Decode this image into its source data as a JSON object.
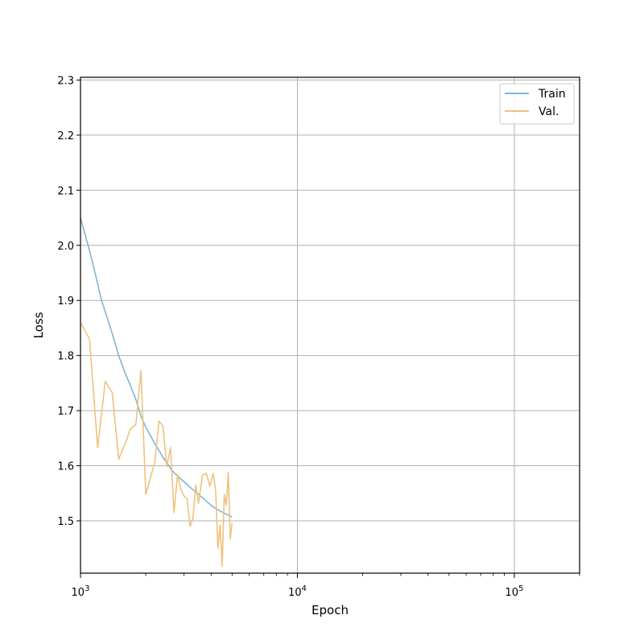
{
  "chart_data": {
    "type": "line",
    "title": "",
    "xlabel": "Epoch",
    "ylabel": "Loss",
    "x_scale": "log",
    "xlim": [
      1000,
      200000
    ],
    "ylim": [
      1.405,
      2.305
    ],
    "x_ticks_major": [
      {
        "value": 1000,
        "base": "10",
        "exp": "3"
      },
      {
        "value": 10000,
        "base": "10",
        "exp": "4"
      },
      {
        "value": 100000,
        "base": "10",
        "exp": "5"
      }
    ],
    "x_ticks_minor": [
      2000,
      3000,
      4000,
      5000,
      6000,
      7000,
      8000,
      9000,
      20000,
      30000,
      40000,
      50000,
      60000,
      70000,
      80000,
      90000,
      200000
    ],
    "y_ticks": [
      {
        "value": 1.5,
        "label": "1.5"
      },
      {
        "value": 1.6,
        "label": "1.6"
      },
      {
        "value": 1.7,
        "label": "1.7"
      },
      {
        "value": 1.8,
        "label": "1.8"
      },
      {
        "value": 1.9,
        "label": "1.9"
      },
      {
        "value": 2.0,
        "label": "2.0"
      },
      {
        "value": 2.1,
        "label": "2.1"
      },
      {
        "value": 2.2,
        "label": "2.2"
      },
      {
        "value": 2.3,
        "label": "2.3"
      }
    ],
    "grid": true,
    "legend_position": "top-right",
    "series": [
      {
        "name": "Train",
        "color": "#7fb6d8",
        "x": [
          1000,
          1050,
          1100,
          1150,
          1200,
          1250,
          1300,
          1400,
          1500,
          1600,
          1700,
          1800,
          1900,
          2000,
          2100,
          2200,
          2300,
          2400,
          2500,
          2600,
          2700,
          2800,
          2900,
          3000,
          3200,
          3400,
          3600,
          3800,
          4000,
          4300,
          4600,
          5000
        ],
        "y": [
          2.05,
          2.02,
          1.99,
          1.96,
          1.93,
          1.9,
          1.88,
          1.84,
          1.8,
          1.77,
          1.745,
          1.72,
          1.69,
          1.67,
          1.655,
          1.64,
          1.628,
          1.615,
          1.606,
          1.595,
          1.587,
          1.582,
          1.576,
          1.571,
          1.561,
          1.552,
          1.544,
          1.536,
          1.528,
          1.52,
          1.514,
          1.507
        ]
      },
      {
        "name": "Val.",
        "color": "#efc27e",
        "x": [
          1000,
          1100,
          1200,
          1300,
          1400,
          1500,
          1600,
          1700,
          1800,
          1900,
          2000,
          2200,
          2300,
          2400,
          2500,
          2600,
          2700,
          2800,
          2900,
          3000,
          3100,
          3200,
          3300,
          3400,
          3500,
          3650,
          3800,
          3950,
          4100,
          4200,
          4300,
          4400,
          4500,
          4600,
          4700,
          4800,
          4900,
          5000
        ],
        "y": [
          1.86,
          1.83,
          1.633,
          1.753,
          1.733,
          1.612,
          1.638,
          1.667,
          1.675,
          1.773,
          1.548,
          1.607,
          1.681,
          1.672,
          1.598,
          1.633,
          1.515,
          1.584,
          1.558,
          1.545,
          1.54,
          1.49,
          1.505,
          1.565,
          1.532,
          1.583,
          1.586,
          1.563,
          1.586,
          1.555,
          1.45,
          1.492,
          1.418,
          1.548,
          1.528,
          1.588,
          1.467,
          1.496
        ]
      }
    ]
  }
}
